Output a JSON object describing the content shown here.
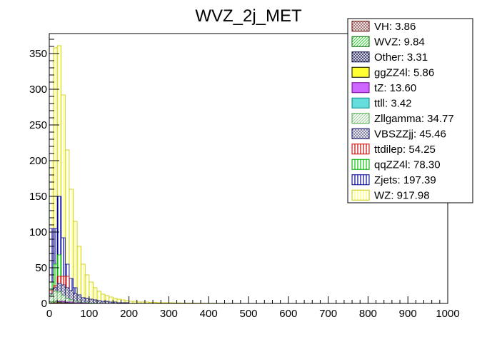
{
  "chart_data": {
    "type": "bar",
    "title": "WVZ_2j_MET",
    "xlabel": "",
    "ylabel": "",
    "xlim": [
      0,
      1000
    ],
    "ylim": [
      0,
      378
    ],
    "x_ticks": [
      "0",
      "100",
      "200",
      "300",
      "400",
      "500",
      "600",
      "700",
      "800",
      "900",
      "1000"
    ],
    "y_ticks": [
      "0",
      "50",
      "100",
      "150",
      "200",
      "250",
      "300",
      "350"
    ],
    "grid": false,
    "legend_position": "top-right",
    "bin_width": 10,
    "stacked": false,
    "series": [
      {
        "name": "WZ: 917.98",
        "color": "#ffff66",
        "hatch": "vertical",
        "stroke": "#c8c800",
        "values": [
          200,
          358,
          361,
          292,
          215,
          160,
          115,
          80,
          55,
          40,
          30,
          22,
          17,
          13,
          11,
          9,
          7,
          6,
          5,
          4,
          3,
          3,
          2,
          2,
          2,
          1.5,
          1.5,
          1,
          1,
          1,
          1,
          0.8,
          0.8,
          0.6,
          0.6,
          0.5,
          0.5,
          0.4,
          0.4,
          0.3,
          0.3,
          0.3,
          0.2,
          0.2,
          0.2,
          0.2,
          0.1,
          0.1,
          0.1,
          0.1
        ]
      },
      {
        "name": "Zjets: 197.39",
        "color": "#000099",
        "hatch": "vertical",
        "stroke": "#000099",
        "values": [
          105,
          105,
          150,
          92,
          55,
          35,
          22,
          12,
          8,
          5,
          4,
          3,
          2,
          2,
          1,
          1,
          1,
          0.5,
          0.5,
          0.5
        ]
      },
      {
        "name": "qqZZ4l: 78.30",
        "color": "#00cc00",
        "hatch": "vertical",
        "stroke": "#00aa00",
        "values": [
          30,
          55,
          68,
          38,
          22,
          12,
          8,
          5,
          3,
          2,
          1.5,
          1,
          1,
          0.5,
          0.5
        ]
      },
      {
        "name": "ttdilep: 54.25",
        "color": "#cc0000",
        "hatch": "vertical",
        "stroke": "#cc0000",
        "values": [
          18,
          25,
          38,
          38,
          38,
          12,
          10,
          8,
          5,
          4,
          3,
          2,
          2,
          1,
          1,
          1,
          0.5,
          0.5
        ]
      },
      {
        "name": "VBSZZjj: 45.46",
        "color": "#777799",
        "hatch": "cross",
        "stroke": "#000066",
        "values": [
          14,
          22,
          28,
          26,
          22,
          18,
          14,
          12,
          8,
          7,
          6,
          5,
          4,
          3,
          3,
          2,
          2,
          1,
          1,
          1
        ]
      },
      {
        "name": "Zllgamma: 34.77",
        "color": "#99cc99",
        "hatch": "diag",
        "stroke": "#44aa44",
        "values": [
          12,
          17,
          16,
          11,
          7,
          5,
          3,
          2,
          1,
          1,
          0.5,
          0.5
        ]
      },
      {
        "name": "ttll: 3.42",
        "color": "#66dddd",
        "hatch": "solid",
        "stroke": "#008888",
        "values": [
          0.5,
          1,
          1,
          1,
          0.5,
          0.3
        ]
      },
      {
        "name": "tZ: 13.60",
        "color": "#cc66ff",
        "hatch": "solid",
        "stroke": "#770099",
        "values": [
          2,
          3,
          3,
          3,
          2,
          2,
          1,
          1,
          0.5,
          0.5
        ]
      },
      {
        "name": "ggZZ4l: 5.86",
        "color": "#ffff33",
        "hatch": "solid",
        "stroke": "#000000",
        "values": [
          1,
          1.5,
          1.5,
          1,
          0.5,
          0.5
        ]
      },
      {
        "name": "Other: 3.31",
        "color": "#333366",
        "hatch": "cross",
        "stroke": "#000033",
        "values": [
          0.5,
          1,
          1,
          0.5,
          0.3
        ]
      },
      {
        "name": "WVZ: 9.84",
        "color": "#33cc33",
        "hatch": "diag",
        "stroke": "#006600",
        "values": [
          2,
          3,
          2,
          1,
          1,
          0.5
        ]
      },
      {
        "name": "VH: 3.86",
        "color": "#996666",
        "hatch": "cross",
        "stroke": "#660000",
        "values": [
          0.5,
          1,
          1,
          0.5,
          0.5
        ]
      }
    ],
    "legend_order": [
      "VH: 3.86",
      "WVZ: 9.84",
      "Other: 3.31",
      "ggZZ4l: 5.86",
      "tZ: 13.60",
      "ttll: 3.42",
      "Zllgamma: 34.77",
      "VBSZZjj: 45.46",
      "ttdilep: 54.25",
      "qqZZ4l: 78.30",
      "Zjets: 197.39",
      "WZ: 917.98"
    ]
  }
}
